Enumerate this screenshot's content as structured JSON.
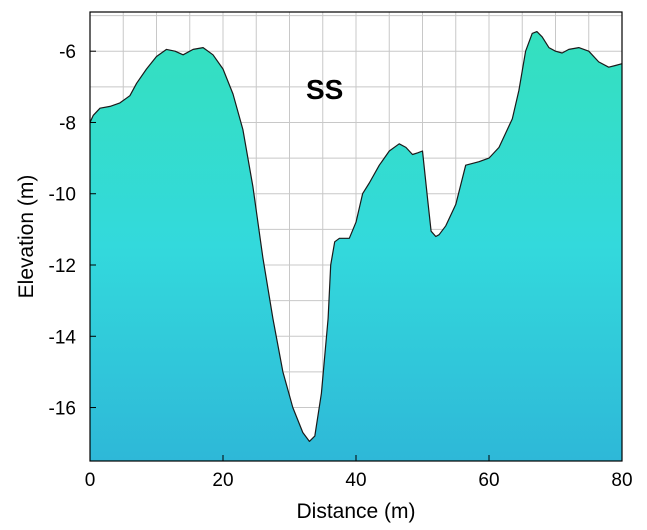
{
  "chart_data": {
    "type": "area",
    "title": "",
    "annotation": "SS",
    "xlabel": "Distance (m)",
    "ylabel": "Elevation (m)",
    "xlim": [
      0,
      80
    ],
    "ylim": [
      -17.5,
      -4.9
    ],
    "xticks": [
      0,
      20,
      40,
      60,
      80
    ],
    "xtick_labels": [
      "0",
      "20",
      "40",
      "60",
      "80"
    ],
    "yticks": [
      -6,
      -8,
      -10,
      -12,
      -14,
      -16
    ],
    "ytick_labels": [
      "-6",
      "-8",
      "-10",
      "-12",
      "-14",
      "-16"
    ],
    "grid": true,
    "colors": {
      "fill_top": "#34E0BE",
      "fill_mid": "#33D9DC",
      "fill_bottom": "#2EB8D8",
      "line": "#1a1a1a",
      "grid": "#c8c8c8"
    },
    "series": [
      {
        "x": [
          0,
          0.5,
          1.5,
          3,
          4.5,
          6,
          7,
          8.5,
          10,
          11.5,
          12.8,
          14,
          15.5,
          17,
          18.5,
          20,
          21.5,
          23,
          24.5,
          26,
          27.5,
          29,
          30.5,
          32,
          33,
          33.8,
          34.8,
          35.8,
          36.2,
          36.8,
          37.5,
          39,
          40,
          41,
          42,
          43.5,
          45,
          46.5,
          47.5,
          48.5,
          49.3,
          50,
          50.8,
          51.3,
          52,
          52.5,
          53.5,
          55,
          56.5,
          57.5,
          58.5,
          60,
          61.5,
          62.5,
          63.5,
          64.5,
          65.5,
          66.5,
          67.2,
          68,
          69,
          70,
          71,
          72,
          73.5,
          75,
          76.5,
          78,
          79,
          80
        ],
        "y": [
          -8.0,
          -7.8,
          -7.6,
          -7.55,
          -7.45,
          -7.25,
          -6.9,
          -6.5,
          -6.15,
          -5.95,
          -6.0,
          -6.1,
          -5.95,
          -5.9,
          -6.1,
          -6.5,
          -7.2,
          -8.2,
          -9.8,
          -11.8,
          -13.5,
          -15.0,
          -16.0,
          -16.7,
          -16.95,
          -16.8,
          -15.6,
          -13.5,
          -12.0,
          -11.35,
          -11.25,
          -11.25,
          -10.8,
          -10.0,
          -9.7,
          -9.2,
          -8.8,
          -8.6,
          -8.7,
          -8.9,
          -8.85,
          -8.8,
          -10.2,
          -11.05,
          -11.2,
          -11.15,
          -10.9,
          -10.3,
          -9.2,
          -9.15,
          -9.1,
          -9.0,
          -8.7,
          -8.3,
          -7.9,
          -7.1,
          -6.0,
          -5.5,
          -5.45,
          -5.6,
          -5.9,
          -6.0,
          -6.05,
          -5.95,
          -5.9,
          -6.0,
          -6.3,
          -6.45,
          -6.4,
          -6.35
        ]
      }
    ]
  }
}
